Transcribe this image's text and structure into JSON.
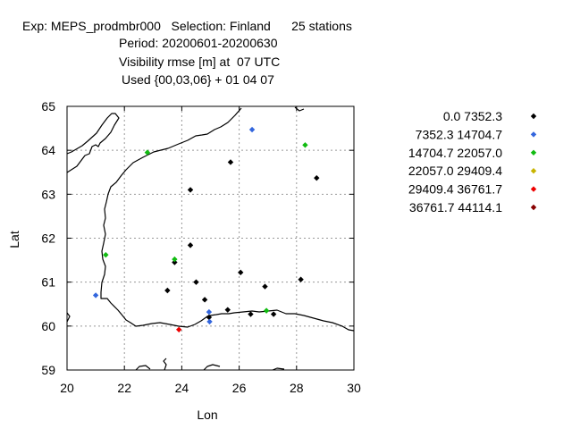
{
  "header": {
    "line1": "Exp: MEPS_prodmbr000   Selection: Finland      25 stations",
    "line2": "Period: 20200601-20200630",
    "line3": "Visibility rmse [m] at  07 UTC",
    "line4": "Used {00,03,06} + 01 04 07"
  },
  "chart_data": {
    "type": "scatter",
    "xlabel": "Lon",
    "ylabel": "Lat",
    "xlim": [
      20,
      30
    ],
    "ylim": [
      59,
      65
    ],
    "xticks": [
      20,
      22,
      24,
      26,
      28,
      30
    ],
    "yticks": [
      59,
      60,
      61,
      62,
      63,
      64,
      65
    ],
    "grid": true,
    "legend_position": "right",
    "classes": [
      {
        "name": "0.0 7352.3",
        "color": "#000000"
      },
      {
        "name": "7352.3 14704.7",
        "color": "#3366dd"
      },
      {
        "name": "14704.7 22057.0",
        "color": "#11bb11"
      },
      {
        "name": "22057.0 29409.4",
        "color": "#c8b400"
      },
      {
        "name": "29409.4 36761.7",
        "color": "#ee0000"
      },
      {
        "name": "36761.7 44114.1",
        "color": "#880000"
      }
    ],
    "points": [
      {
        "lon": 24.3,
        "lat": 63.1,
        "class": 0
      },
      {
        "lon": 25.7,
        "lat": 63.73,
        "class": 0
      },
      {
        "lon": 28.7,
        "lat": 63.37,
        "class": 0
      },
      {
        "lon": 24.3,
        "lat": 61.84,
        "class": 0
      },
      {
        "lon": 26.05,
        "lat": 61.22,
        "class": 0
      },
      {
        "lon": 23.75,
        "lat": 61.45,
        "class": 0
      },
      {
        "lon": 24.5,
        "lat": 61.0,
        "class": 0
      },
      {
        "lon": 23.5,
        "lat": 60.81,
        "class": 0
      },
      {
        "lon": 24.8,
        "lat": 60.6,
        "class": 0
      },
      {
        "lon": 26.9,
        "lat": 60.9,
        "class": 0
      },
      {
        "lon": 28.15,
        "lat": 61.06,
        "class": 0
      },
      {
        "lon": 25.6,
        "lat": 60.37,
        "class": 0
      },
      {
        "lon": 24.95,
        "lat": 60.2,
        "class": 0
      },
      {
        "lon": 26.4,
        "lat": 60.27,
        "class": 0
      },
      {
        "lon": 27.2,
        "lat": 60.27,
        "class": 0
      },
      {
        "lon": 26.45,
        "lat": 64.47,
        "class": 1
      },
      {
        "lon": 21.0,
        "lat": 60.7,
        "class": 1
      },
      {
        "lon": 24.95,
        "lat": 60.32,
        "class": 1
      },
      {
        "lon": 24.97,
        "lat": 60.1,
        "class": 1
      },
      {
        "lon": 22.8,
        "lat": 63.95,
        "class": 2
      },
      {
        "lon": 28.3,
        "lat": 64.12,
        "class": 2
      },
      {
        "lon": 21.35,
        "lat": 61.62,
        "class": 2
      },
      {
        "lon": 23.75,
        "lat": 61.52,
        "class": 2
      },
      {
        "lon": 26.95,
        "lat": 60.35,
        "class": 2
      },
      {
        "lon": 23.9,
        "lat": 59.92,
        "class": 4
      }
    ]
  }
}
